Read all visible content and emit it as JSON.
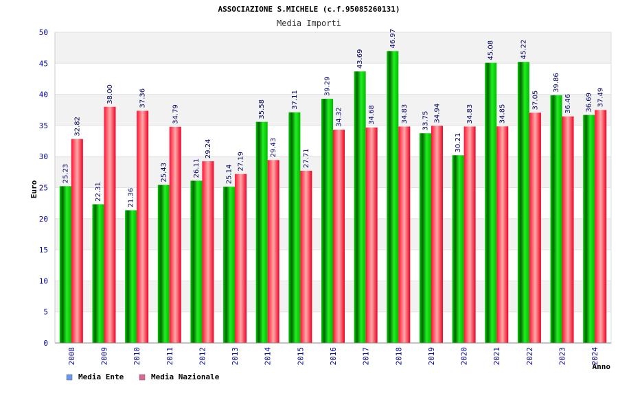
{
  "chart_data": {
    "type": "bar",
    "title": "ASSOCIAZIONE S.MICHELE (c.f.95085260131)",
    "subtitle": "Media Importi",
    "xlabel": "Anno",
    "ylabel": "Euro",
    "ylim": [
      0,
      50
    ],
    "yticks": [
      "0",
      "5",
      "10",
      "15",
      "20",
      "25",
      "30",
      "35",
      "40",
      "45",
      "50"
    ],
    "grid": true,
    "legend_position": "bottom-left",
    "categories": [
      "2008",
      "2009",
      "2010",
      "2011",
      "2012",
      "2013",
      "2014",
      "2015",
      "2016",
      "2017",
      "2018",
      "2019",
      "2020",
      "2021",
      "2022",
      "2023",
      "2024"
    ],
    "series": [
      {
        "name": "Media Ente",
        "legend_color": "#6699ee",
        "color": "#00aa00",
        "values": [
          25.23,
          22.31,
          21.36,
          25.43,
          26.11,
          25.14,
          35.58,
          37.11,
          39.29,
          43.69,
          46.97,
          33.75,
          30.21,
          45.08,
          45.22,
          39.86,
          36.69
        ],
        "labels": [
          "25.23",
          "22.31",
          "21.36",
          "25.43",
          "26.11",
          "25.14",
          "35.58",
          "37.11",
          "39.29",
          "43.69",
          "46.97",
          "33.75",
          "30.21",
          "45.08",
          "45.22",
          "39.86",
          "36.69"
        ]
      },
      {
        "name": "Media Nazionale",
        "legend_color": "#dd6699",
        "color": "#dd0022",
        "values": [
          32.82,
          38.0,
          37.36,
          34.79,
          29.24,
          27.19,
          29.43,
          27.71,
          34.32,
          34.68,
          34.83,
          34.94,
          34.83,
          34.85,
          37.05,
          36.46,
          37.49
        ],
        "labels": [
          "32.82",
          "38.00",
          "37.36",
          "34.79",
          "29.24",
          "27.19",
          "29.43",
          "27.71",
          "34.32",
          "34.68",
          "34.83",
          "34.94",
          "34.83",
          "34.85",
          "37.05",
          "36.46",
          "37.49"
        ]
      }
    ]
  }
}
